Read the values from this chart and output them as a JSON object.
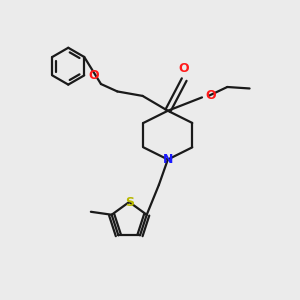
{
  "bg_color": "#ebebeb",
  "bond_color": "#1a1a1a",
  "N_color": "#1a1aff",
  "O_color": "#ff1a1a",
  "S_color": "#b8b800",
  "linewidth": 1.6,
  "figsize": [
    3.0,
    3.0
  ],
  "dpi": 100,
  "xlim": [
    0,
    10
  ],
  "ylim": [
    0,
    10
  ]
}
